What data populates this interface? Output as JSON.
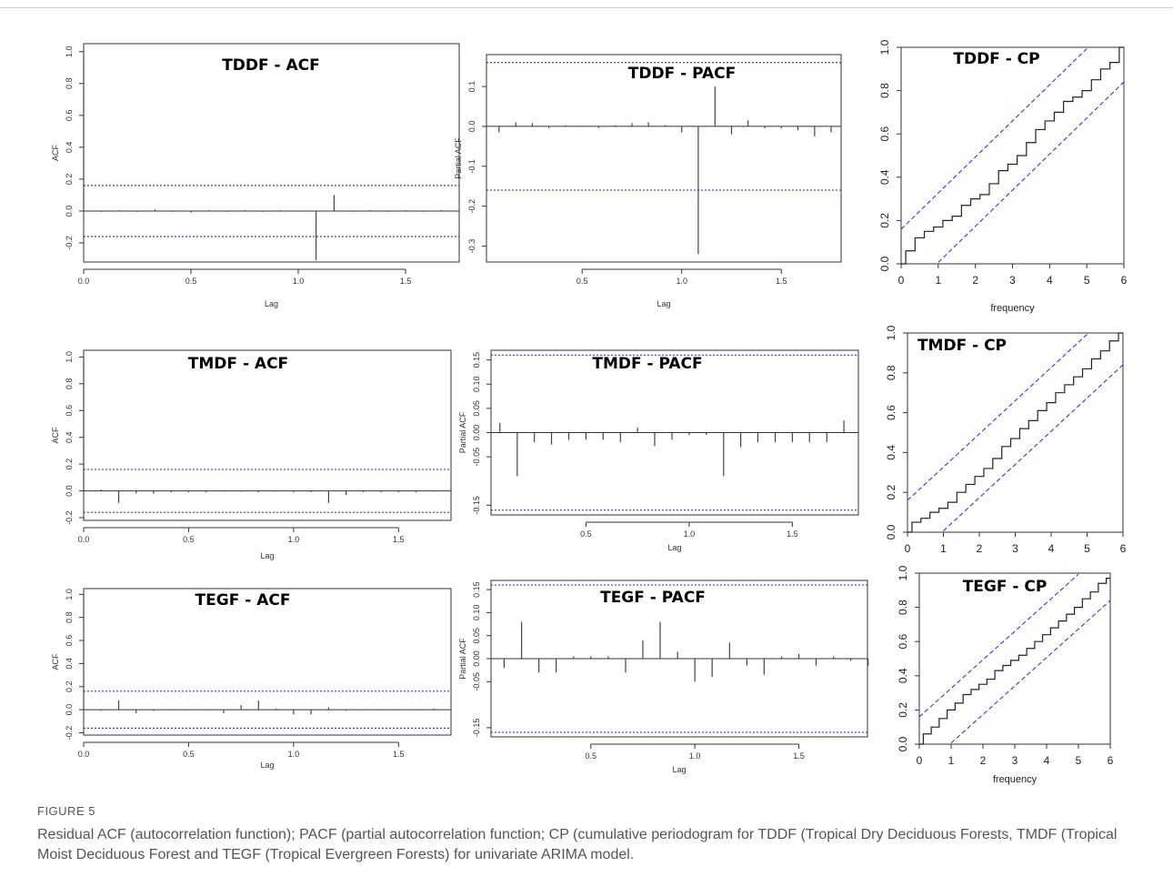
{
  "figure_label": "FIGURE 5",
  "caption": "Residual ACF (autocorrelation function); PACF (partial autocorrelation function; CP (cumulative periodogram for TDDF (Tropical Dry Deciduous Forests, TMDF (Tropical Moist Deciduous Forest and TEGF (Tropical Evergreen Forests) for univariate ARIMA model.",
  "colors": {
    "ci_line": "#3333ff",
    "bars": "#444444",
    "axis": "#333333"
  },
  "chart_data": [
    {
      "id": "tddf-acf",
      "type": "bar",
      "title": "TDDF - ACF",
      "xlabel": "Lag",
      "ylabel": "ACF",
      "xlim": [
        0,
        1.75
      ],
      "ylim": [
        -0.32,
        1.05
      ],
      "xticks": [
        0,
        0.5,
        1.0,
        1.5
      ],
      "xtick_labels": [
        "0.0",
        "0.5",
        "1.0",
        "1.5"
      ],
      "yticks": [
        -0.2,
        0,
        0.2,
        0.4,
        0.6,
        0.8,
        1.0
      ],
      "ytick_labels": [
        "-0.2",
        "0.0",
        "0.2",
        "0.4",
        "0.6",
        "0.8",
        "1.0"
      ],
      "ci": [
        0.16,
        -0.16
      ],
      "lags": [
        0,
        0.083,
        0.167,
        0.25,
        0.333,
        0.417,
        0.5,
        0.583,
        0.667,
        0.75,
        0.833,
        0.917,
        1.0,
        1.083,
        1.167,
        1.25,
        1.333,
        1.417,
        1.5,
        1.583,
        1.667,
        1.75
      ],
      "values": [
        1.0,
        -0.005,
        0.005,
        -0.005,
        0.01,
        -0.005,
        -0.01,
        0.005,
        -0.005,
        0.005,
        -0.005,
        0.005,
        -0.005,
        -0.31,
        0.1,
        -0.005,
        0.005,
        -0.005,
        0.005,
        -0.005,
        0.005,
        -0.005
      ]
    },
    {
      "id": "tddf-pacf",
      "type": "bar",
      "title": "TDDF - PACF",
      "xlabel": "Lag",
      "ylabel": "Partial ACF",
      "xlim": [
        0.02,
        1.8
      ],
      "ylim": [
        -0.34,
        0.18
      ],
      "xticks": [
        0.5,
        1.0,
        1.5
      ],
      "xtick_labels": [
        "0.5",
        "1.0",
        "1.5"
      ],
      "yticks": [
        -0.3,
        -0.2,
        -0.1,
        0,
        0.1
      ],
      "ytick_labels": [
        "-0.3",
        "-0.2",
        "-0.1",
        "0.0",
        "0.1"
      ],
      "ci": [
        0.16,
        -0.16
      ],
      "lags": [
        0.083,
        0.167,
        0.25,
        0.333,
        0.417,
        0.5,
        0.583,
        0.667,
        0.75,
        0.833,
        0.917,
        1.0,
        1.083,
        1.167,
        1.25,
        1.333,
        1.417,
        1.5,
        1.583,
        1.667,
        1.75
      ],
      "values": [
        -0.015,
        0.01,
        0.008,
        -0.004,
        0.003,
        0.002,
        -0.004,
        0.003,
        0.008,
        0.01,
        0.003,
        -0.015,
        -0.32,
        0.1,
        -0.02,
        0.015,
        -0.005,
        -0.005,
        -0.01,
        -0.025,
        -0.015
      ]
    },
    {
      "id": "tddf-cp",
      "type": "line",
      "title": "TDDF - CP",
      "xlabel": "frequency",
      "ylabel": "",
      "xlim": [
        0,
        6
      ],
      "ylim": [
        0,
        1.0
      ],
      "xticks": [
        0,
        1,
        2,
        3,
        4,
        5,
        6
      ],
      "xtick_labels": [
        "0",
        "1",
        "2",
        "3",
        "4",
        "5",
        "6"
      ],
      "yticks": [
        0,
        0.2,
        0.4,
        0.6,
        0.8,
        1.0
      ],
      "ytick_labels": [
        "0.0",
        "0.2",
        "0.4",
        "0.6",
        "0.8",
        "1.0"
      ],
      "band_offset": 0.16,
      "x": [
        0,
        0.25,
        0.5,
        0.75,
        1.0,
        1.25,
        1.5,
        1.75,
        2.0,
        2.25,
        2.5,
        2.75,
        3.0,
        3.25,
        3.5,
        3.75,
        4.0,
        4.25,
        4.5,
        4.75,
        5.0,
        5.25,
        5.5,
        5.75,
        6.0
      ],
      "y": [
        0,
        0.06,
        0.12,
        0.15,
        0.17,
        0.2,
        0.22,
        0.27,
        0.3,
        0.32,
        0.37,
        0.43,
        0.46,
        0.5,
        0.56,
        0.62,
        0.66,
        0.7,
        0.75,
        0.77,
        0.8,
        0.85,
        0.9,
        0.93,
        1.0
      ]
    },
    {
      "id": "tmdf-acf",
      "type": "bar",
      "title": "TMDF - ACF",
      "xlabel": "Lag",
      "ylabel": "ACF",
      "xlim": [
        0,
        1.75
      ],
      "ylim": [
        -0.22,
        1.05
      ],
      "xticks": [
        0,
        0.5,
        1.0,
        1.5
      ],
      "xtick_labels": [
        "0.0",
        "0.5",
        "1.0",
        "1.5"
      ],
      "yticks": [
        -0.2,
        0,
        0.2,
        0.4,
        0.6,
        0.8,
        1.0
      ],
      "ytick_labels": [
        "-0.2",
        "0.0",
        "0.2",
        "0.4",
        "0.6",
        "0.8",
        "1.0"
      ],
      "ci": [
        0.16,
        -0.16
      ],
      "lags": [
        0,
        0.083,
        0.167,
        0.25,
        0.333,
        0.417,
        0.5,
        0.583,
        0.667,
        0.75,
        0.833,
        0.917,
        1.0,
        1.083,
        1.167,
        1.25,
        1.333,
        1.417,
        1.5,
        1.583,
        1.667,
        1.75
      ],
      "values": [
        1.0,
        0.01,
        -0.09,
        -0.02,
        -0.02,
        -0.01,
        -0.01,
        -0.01,
        -0.005,
        -0.005,
        -0.01,
        -0.005,
        -0.01,
        -0.01,
        -0.09,
        -0.03,
        -0.01,
        -0.01,
        -0.01,
        -0.01,
        -0.005,
        0.02
      ]
    },
    {
      "id": "tmdf-pacf",
      "type": "bar",
      "title": "TMDF - PACF",
      "xlabel": "Lag",
      "ylabel": "Partial ACF",
      "xlim": [
        0.04,
        1.82
      ],
      "ylim": [
        -0.17,
        0.17
      ],
      "xticks": [
        0.5,
        1.0,
        1.5
      ],
      "xtick_labels": [
        "0.5",
        "1.0",
        "1.5"
      ],
      "yticks": [
        -0.15,
        -0.05,
        0,
        0.05,
        0.1,
        0.15
      ],
      "ytick_labels": [
        "-0.15",
        "-0.05",
        "0.00",
        "0.05",
        "0.10",
        "0.15"
      ],
      "ci": [
        0.16,
        -0.16
      ],
      "lags": [
        0.083,
        0.167,
        0.25,
        0.333,
        0.417,
        0.5,
        0.583,
        0.667,
        0.75,
        0.833,
        0.917,
        1.0,
        1.083,
        1.167,
        1.25,
        1.333,
        1.417,
        1.5,
        1.583,
        1.667,
        1.75
      ],
      "values": [
        0.02,
        -0.09,
        -0.02,
        -0.025,
        -0.015,
        -0.015,
        -0.015,
        -0.02,
        0.01,
        -0.028,
        -0.015,
        -0.005,
        -0.005,
        -0.09,
        -0.03,
        -0.02,
        -0.02,
        -0.02,
        -0.02,
        -0.02,
        0.025
      ]
    },
    {
      "id": "tmdf-cp",
      "type": "line",
      "title": "TMDF - CP",
      "xlabel": "",
      "ylabel": "",
      "xlim": [
        0,
        6
      ],
      "ylim": [
        0,
        1.0
      ],
      "xticks": [
        0,
        1,
        2,
        3,
        4,
        5,
        6
      ],
      "xtick_labels": [
        "0",
        "1",
        "2",
        "3",
        "4",
        "5",
        "6"
      ],
      "yticks": [
        0,
        0.2,
        0.4,
        0.6,
        0.8,
        1.0
      ],
      "ytick_labels": [
        "0.0",
        "0.2",
        "0.4",
        "0.6",
        "0.8",
        "1.0"
      ],
      "band_offset": 0.16,
      "x": [
        0,
        0.25,
        0.5,
        0.75,
        1.0,
        1.25,
        1.5,
        1.75,
        2.0,
        2.25,
        2.5,
        2.75,
        3.0,
        3.25,
        3.5,
        3.75,
        4.0,
        4.25,
        4.5,
        4.75,
        5.0,
        5.25,
        5.5,
        5.75,
        6.0
      ],
      "y": [
        0,
        0.05,
        0.07,
        0.1,
        0.12,
        0.15,
        0.2,
        0.24,
        0.28,
        0.32,
        0.37,
        0.43,
        0.47,
        0.52,
        0.56,
        0.61,
        0.65,
        0.7,
        0.74,
        0.78,
        0.82,
        0.87,
        0.91,
        0.96,
        1.0
      ]
    },
    {
      "id": "tegf-acf",
      "type": "bar",
      "title": "TEGF - ACF",
      "xlabel": "Lag",
      "ylabel": "ACF",
      "xlim": [
        0,
        1.75
      ],
      "ylim": [
        -0.22,
        1.05
      ],
      "xticks": [
        0,
        0.5,
        1.0,
        1.5
      ],
      "xtick_labels": [
        "0.0",
        "0.5",
        "1.0",
        "1.5"
      ],
      "yticks": [
        -0.2,
        0,
        0.2,
        0.4,
        0.6,
        0.8,
        1.0
      ],
      "ytick_labels": [
        "-0.2",
        "0.0",
        "0.2",
        "0.4",
        "0.6",
        "0.8",
        "1.0"
      ],
      "ci": [
        0.16,
        -0.16
      ],
      "lags": [
        0,
        0.083,
        0.167,
        0.25,
        0.333,
        0.417,
        0.5,
        0.583,
        0.667,
        0.75,
        0.833,
        0.917,
        1.0,
        1.083,
        1.167,
        1.25,
        1.333,
        1.417,
        1.5,
        1.583,
        1.667,
        1.75
      ],
      "values": [
        1.0,
        -0.01,
        0.08,
        -0.03,
        -0.01,
        -0.005,
        -0.005,
        -0.005,
        -0.03,
        0.04,
        0.08,
        0.01,
        -0.04,
        -0.04,
        0.02,
        -0.01,
        -0.005,
        -0.005,
        -0.005,
        -0.005,
        0.01,
        -0.01
      ]
    },
    {
      "id": "tegf-pacf",
      "type": "bar",
      "title": "TEGF - PACF",
      "xlabel": "Lag",
      "ylabel": "Partial ACF",
      "xlim": [
        0.02,
        1.83
      ],
      "ylim": [
        -0.17,
        0.17
      ],
      "xticks": [
        0.5,
        1.0,
        1.5
      ],
      "xtick_labels": [
        "0.5",
        "1.0",
        "1.5"
      ],
      "yticks": [
        -0.15,
        -0.05,
        0,
        0.05,
        0.1,
        0.15
      ],
      "ytick_labels": [
        "-0.15",
        "-0.05",
        "0.00",
        "0.05",
        "0.10",
        "0.15"
      ],
      "ci": [
        0.16,
        -0.16
      ],
      "lags": [
        0.083,
        0.167,
        0.25,
        0.333,
        0.417,
        0.5,
        0.583,
        0.667,
        0.75,
        0.833,
        0.917,
        1.0,
        1.083,
        1.167,
        1.25,
        1.333,
        1.417,
        1.5,
        1.583,
        1.667,
        1.75,
        1.833
      ],
      "values": [
        -0.02,
        0.08,
        -0.03,
        -0.03,
        0.005,
        0.005,
        0.005,
        -0.03,
        0.04,
        0.08,
        0.015,
        -0.05,
        -0.04,
        0.035,
        -0.015,
        -0.035,
        0.005,
        0.01,
        -0.015,
        0.005,
        -0.005,
        -0.015
      ]
    },
    {
      "id": "tegf-cp",
      "type": "line",
      "title": "TEGF - CP",
      "xlabel": "frequency",
      "ylabel": "",
      "xlim": [
        0,
        6
      ],
      "ylim": [
        0,
        1.0
      ],
      "xticks": [
        0,
        1,
        2,
        3,
        4,
        5,
        6
      ],
      "xtick_labels": [
        "0",
        "1",
        "2",
        "3",
        "4",
        "5",
        "6"
      ],
      "yticks": [
        0,
        0.2,
        0.4,
        0.6,
        0.8,
        1.0
      ],
      "ytick_labels": [
        "0.0",
        "0.2",
        "0.4",
        "0.6",
        "0.8",
        "1.0"
      ],
      "band_offset": 0.16,
      "x": [
        0,
        0.25,
        0.5,
        0.75,
        1.0,
        1.25,
        1.5,
        1.75,
        2.0,
        2.25,
        2.5,
        2.75,
        3.0,
        3.25,
        3.5,
        3.75,
        4.0,
        4.25,
        4.5,
        4.75,
        5.0,
        5.25,
        5.5,
        5.75,
        6.0
      ],
      "y": [
        0,
        0.06,
        0.1,
        0.15,
        0.2,
        0.24,
        0.29,
        0.32,
        0.35,
        0.38,
        0.43,
        0.46,
        0.49,
        0.52,
        0.56,
        0.6,
        0.64,
        0.68,
        0.72,
        0.76,
        0.8,
        0.85,
        0.89,
        0.94,
        0.97
      ]
    }
  ]
}
